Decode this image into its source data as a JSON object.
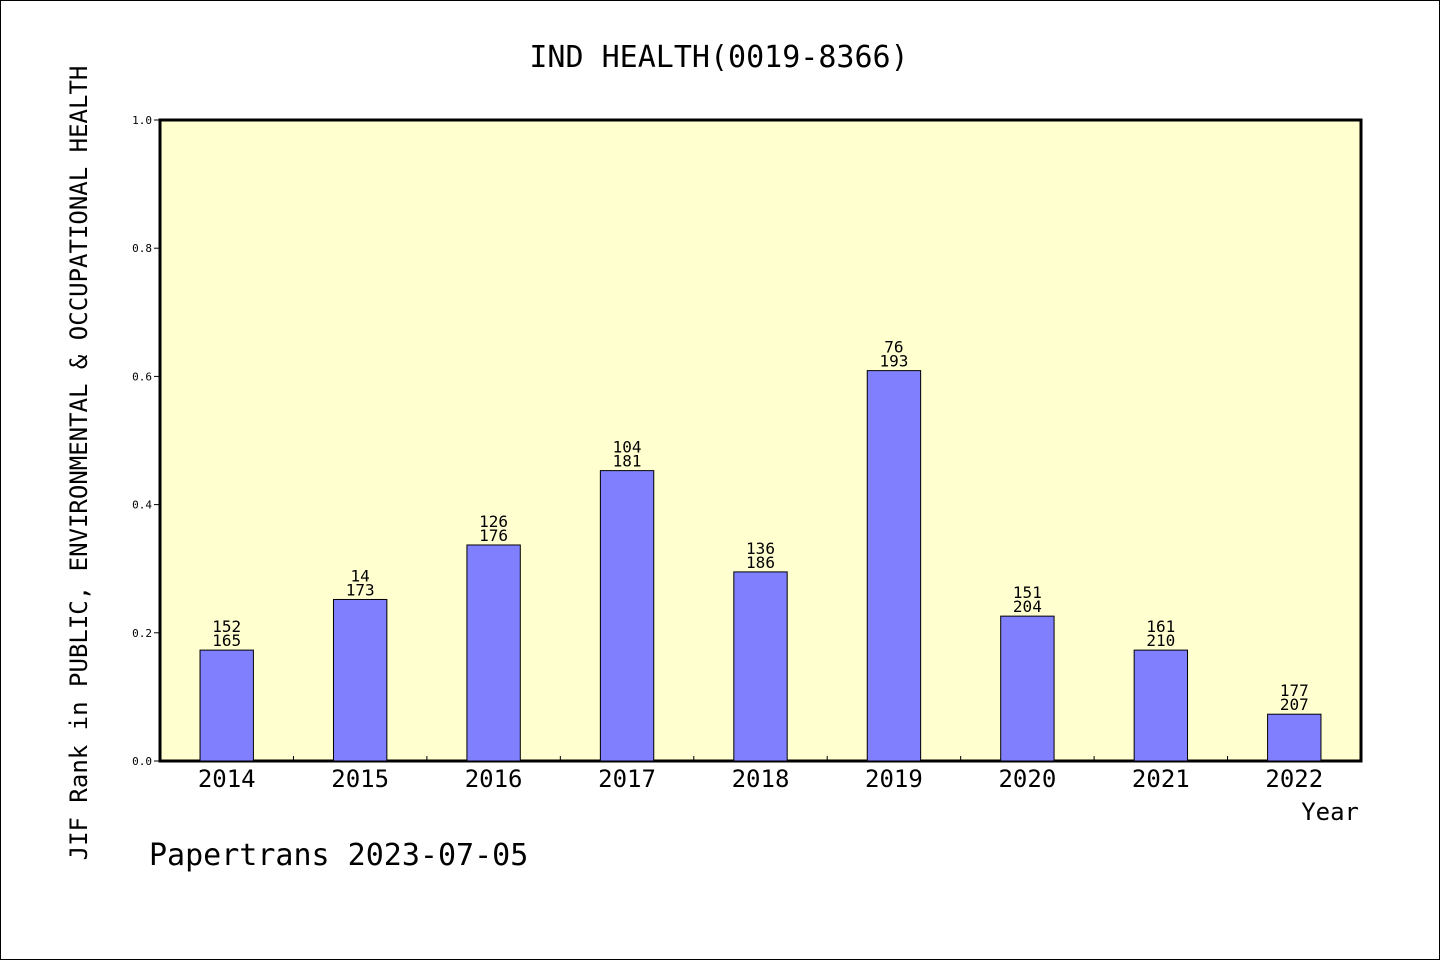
{
  "chart_data": {
    "type": "bar",
    "title": "IND HEALTH(0019-8366)",
    "xlabel": "Year",
    "ylabel": "JIF Rank in PUBLIC, ENVIRONMENTAL & OCCUPATIONAL HEALTH",
    "ylim": [
      0,
      1.0
    ],
    "yticks": [
      "0.0",
      "0.2",
      "0.4",
      "0.6",
      "0.8",
      "1.0"
    ],
    "categories": [
      "2014",
      "2015",
      "2016",
      "2017",
      "2018",
      "2019",
      "2020",
      "2021",
      "2022"
    ],
    "values": [
      0.173,
      0.252,
      0.337,
      0.453,
      0.295,
      0.609,
      0.226,
      0.173,
      0.073
    ],
    "ranks": [
      "152",
      "14",
      "126",
      "104",
      "136",
      "76",
      "151",
      "161",
      "177"
    ],
    "totals": [
      "165",
      "173",
      "176",
      "181",
      "186",
      "193",
      "204",
      "210",
      "207"
    ],
    "grid": false,
    "colors": {
      "bar": "#8080ff",
      "plot_bg": "#ffffd0",
      "axis": "#000000"
    }
  },
  "footer": "Papertrans 2023-07-05"
}
